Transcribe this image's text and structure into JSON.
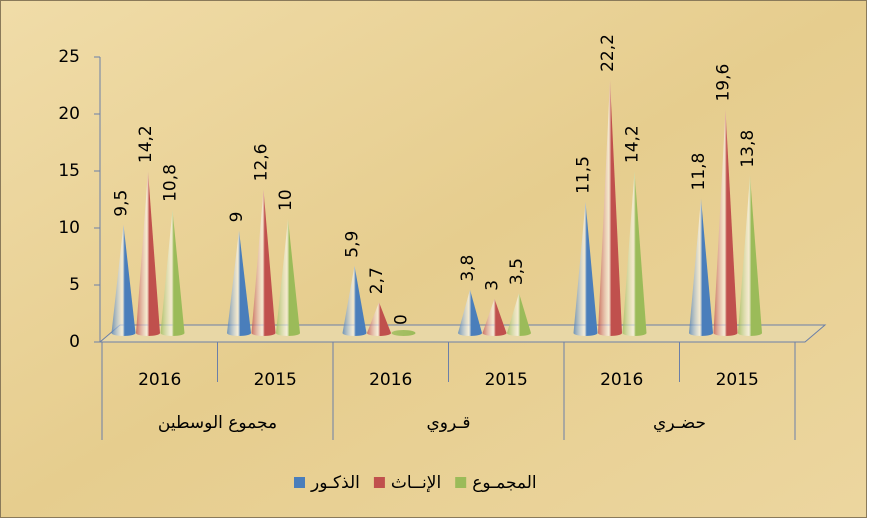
{
  "chart_data": {
    "type": "cone",
    "categories": [
      "2016",
      "2015",
      "2016",
      "2015",
      "2016",
      "2015"
    ],
    "category_groups": [
      "مجموع الوسطين",
      "قـروي",
      "حضـري"
    ],
    "series": [
      {
        "name": "الذكـور",
        "color": "#4a7ebb",
        "values": [
          9.5,
          9,
          5.9,
          3.8,
          11.5,
          11.8
        ],
        "value_labels": [
          "9,5",
          "9",
          "5,9",
          "3,8",
          "11,5",
          "11,8"
        ]
      },
      {
        "name": "الإنــاث",
        "color": "#c0504d",
        "values": [
          14.2,
          12.6,
          2.7,
          3,
          22.2,
          19.6
        ],
        "value_labels": [
          "14,2",
          "12,6",
          "2,7",
          "3",
          "22,2",
          "19,6"
        ]
      },
      {
        "name": "المجمـوع",
        "color": "#9bbb59",
        "values": [
          10.8,
          10,
          0,
          3.5,
          14.2,
          13.8
        ],
        "value_labels": [
          "10,8",
          "10",
          "0",
          "3,5",
          "14,2",
          "13,8"
        ]
      }
    ],
    "ylim": [
      0,
      25
    ],
    "yticks": [
      0,
      5,
      10,
      15,
      20,
      25
    ],
    "legend": "bottom"
  }
}
